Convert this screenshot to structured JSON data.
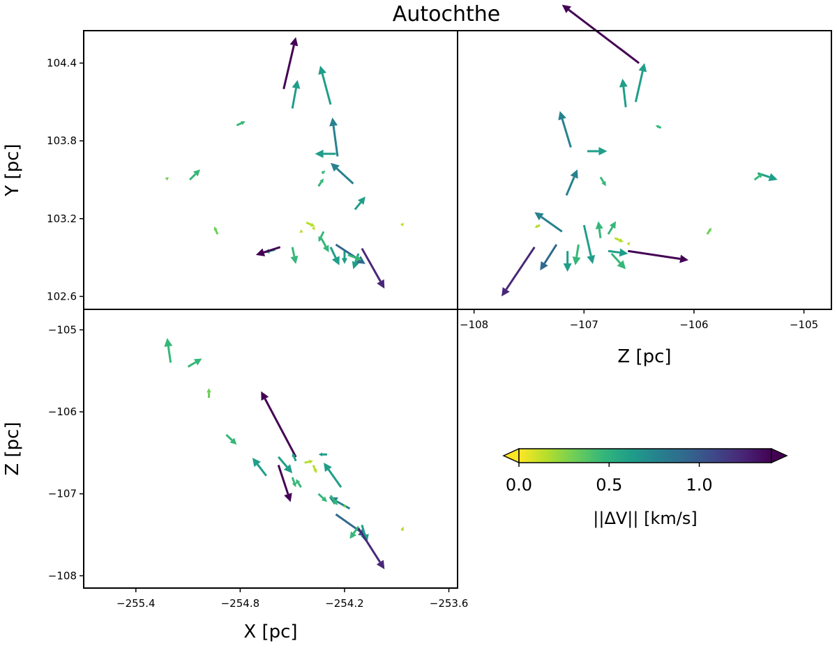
{
  "chart_data": {
    "type": "quiver",
    "title": "Autochthe",
    "panels": [
      {
        "id": "xy",
        "xlabel": "",
        "ylabel": "Y [pc]",
        "xlim": [
          -255.7,
          -253.55
        ],
        "ylim": [
          102.5,
          104.65
        ],
        "xticks": [],
        "yticks": [
          102.6,
          103.2,
          103.8,
          104.4
        ],
        "ytick_labels": [
          "102.6",
          "103.2",
          "103.8",
          "104.4"
        ],
        "arrows": [
          {
            "x": -254.55,
            "y": 104.2,
            "dx": 0.07,
            "dy": 0.4,
            "m": 1.38
          },
          {
            "x": -254.5,
            "y": 104.05,
            "dx": 0.03,
            "dy": 0.22,
            "m": 0.6
          },
          {
            "x": -254.28,
            "y": 104.08,
            "dx": -0.06,
            "dy": 0.3,
            "m": 0.65
          },
          {
            "x": -254.24,
            "y": 103.68,
            "dx": -0.03,
            "dy": 0.3,
            "m": 0.78
          },
          {
            "x": -254.25,
            "y": 103.7,
            "dx": -0.12,
            "dy": 0.0,
            "m": 0.6
          },
          {
            "x": -254.15,
            "y": 103.47,
            "dx": -0.13,
            "dy": 0.16,
            "m": 0.8
          },
          {
            "x": -254.14,
            "y": 103.27,
            "dx": 0.06,
            "dy": 0.1,
            "m": 0.6
          },
          {
            "x": -254.82,
            "y": 103.92,
            "dx": 0.05,
            "dy": 0.03,
            "m": 0.4
          },
          {
            "x": -255.09,
            "y": 103.5,
            "dx": 0.06,
            "dy": 0.08,
            "m": 0.4
          },
          {
            "x": -254.93,
            "y": 103.08,
            "dx": -0.02,
            "dy": 0.06,
            "m": 0.3
          },
          {
            "x": -255.22,
            "y": 103.51,
            "dx": 0.01,
            "dy": 0.01,
            "m": 0.35
          },
          {
            "x": -254.35,
            "y": 103.45,
            "dx": 0.03,
            "dy": 0.06,
            "m": 0.4
          },
          {
            "x": -254.33,
            "y": 103.55,
            "dx": 0.02,
            "dy": 0.02,
            "m": 0.4
          },
          {
            "x": -254.32,
            "y": 103.1,
            "dx": -0.03,
            "dy": -0.08,
            "m": 0.45
          },
          {
            "x": -254.42,
            "y": 103.17,
            "dx": 0.05,
            "dy": -0.03,
            "m": 0.2
          },
          {
            "x": -254.38,
            "y": 103.13,
            "dx": 0.01,
            "dy": -0.02,
            "m": 0.1
          },
          {
            "x": -254.33,
            "y": 103.04,
            "dx": 0.04,
            "dy": -0.1,
            "m": 0.5
          },
          {
            "x": -254.28,
            "y": 102.98,
            "dx": 0.05,
            "dy": -0.14,
            "m": 0.6
          },
          {
            "x": -254.2,
            "y": 102.95,
            "dx": 0.0,
            "dy": -0.1,
            "m": 0.55
          },
          {
            "x": -254.25,
            "y": 103.0,
            "dx": 0.17,
            "dy": -0.15,
            "m": 1.0
          },
          {
            "x": -254.12,
            "y": 102.93,
            "dx": -0.03,
            "dy": -0.12,
            "m": 0.6
          },
          {
            "x": -254.18,
            "y": 102.92,
            "dx": 0.08,
            "dy": -0.04,
            "m": 0.5
          },
          {
            "x": -254.1,
            "y": 102.97,
            "dx": 0.13,
            "dy": -0.31,
            "m": 1.3
          },
          {
            "x": -254.5,
            "y": 102.98,
            "dx": 0.02,
            "dy": -0.13,
            "m": 0.45
          },
          {
            "x": -254.6,
            "y": 102.96,
            "dx": -0.06,
            "dy": -0.02,
            "m": 0.6
          },
          {
            "x": -254.57,
            "y": 102.98,
            "dx": -0.14,
            "dy": -0.06,
            "m": 1.35
          },
          {
            "x": -253.87,
            "y": 103.15,
            "dx": 0.01,
            "dy": 0.02,
            "m": 0.2
          },
          {
            "x": -254.45,
            "y": 103.1,
            "dx": -0.01,
            "dy": -0.01,
            "m": 0.1
          }
        ]
      },
      {
        "id": "zy",
        "xlabel": "Z [pc]",
        "ylabel": "",
        "xlim": [
          -108.15,
          -104.75
        ],
        "ylim": [
          102.5,
          104.65
        ],
        "xticks": [
          -108,
          -107,
          -106,
          -105
        ],
        "xtick_labels": [
          "−108",
          "−107",
          "−106",
          "−105"
        ],
        "yticks": [],
        "arrows": [
          {
            "x": -106.5,
            "y": 104.4,
            "dx": -0.7,
            "dy": 0.45,
            "m": 1.38
          },
          {
            "x": -106.53,
            "y": 104.1,
            "dx": 0.08,
            "dy": 0.3,
            "m": 0.65
          },
          {
            "x": -106.62,
            "y": 104.06,
            "dx": -0.03,
            "dy": 0.22,
            "m": 0.6
          },
          {
            "x": -106.3,
            "y": 103.9,
            "dx": -0.05,
            "dy": 0.02,
            "m": 0.4
          },
          {
            "x": -107.12,
            "y": 103.75,
            "dx": -0.1,
            "dy": 0.28,
            "m": 0.78
          },
          {
            "x": -106.97,
            "y": 103.72,
            "dx": 0.18,
            "dy": 0.0,
            "m": 0.6
          },
          {
            "x": -107.16,
            "y": 103.38,
            "dx": 0.1,
            "dy": 0.2,
            "m": 0.8
          },
          {
            "x": -106.85,
            "y": 103.52,
            "dx": 0.05,
            "dy": -0.07,
            "m": 0.4
          },
          {
            "x": -105.42,
            "y": 103.55,
            "dx": 0.18,
            "dy": -0.05,
            "m": 0.55
          },
          {
            "x": -105.45,
            "y": 103.5,
            "dx": 0.08,
            "dy": 0.05,
            "m": 0.4
          },
          {
            "x": -107.2,
            "y": 103.1,
            "dx": -0.25,
            "dy": 0.15,
            "m": 0.8
          },
          {
            "x": -105.88,
            "y": 103.08,
            "dx": 0.04,
            "dy": 0.05,
            "m": 0.3
          },
          {
            "x": -106.78,
            "y": 103.08,
            "dx": 0.07,
            "dy": 0.1,
            "m": 0.5
          },
          {
            "x": -106.85,
            "y": 103.05,
            "dx": -0.02,
            "dy": 0.13,
            "m": 0.45
          },
          {
            "x": -106.72,
            "y": 103.05,
            "dx": 0.08,
            "dy": -0.03,
            "m": 0.2
          },
          {
            "x": -107.4,
            "y": 103.15,
            "dx": -0.05,
            "dy": -0.02,
            "m": 0.1
          },
          {
            "x": -106.6,
            "y": 103.0,
            "dx": 0.02,
            "dy": 0.02,
            "m": 0.1
          },
          {
            "x": -107.05,
            "y": 103.0,
            "dx": -0.03,
            "dy": -0.16,
            "m": 0.5
          },
          {
            "x": -107.0,
            "y": 103.15,
            "dx": 0.08,
            "dy": -0.3,
            "m": 0.55
          },
          {
            "x": -107.15,
            "y": 102.95,
            "dx": 0.0,
            "dy": -0.16,
            "m": 0.6
          },
          {
            "x": -107.25,
            "y": 103.0,
            "dx": -0.15,
            "dy": -0.2,
            "m": 1.0
          },
          {
            "x": -107.45,
            "y": 102.98,
            "dx": -0.3,
            "dy": -0.38,
            "m": 1.3
          },
          {
            "x": -106.78,
            "y": 102.95,
            "dx": 0.18,
            "dy": -0.02,
            "m": 0.6
          },
          {
            "x": -106.75,
            "y": 102.93,
            "dx": 0.13,
            "dy": -0.12,
            "m": 0.5
          },
          {
            "x": -106.6,
            "y": 102.95,
            "dx": 0.55,
            "dy": -0.07,
            "m": 1.35
          }
        ]
      },
      {
        "id": "xz",
        "xlabel": "X [pc]",
        "ylabel": "Z [pc]",
        "xlim": [
          -255.7,
          -253.55
        ],
        "ylim": [
          -108.15,
          -104.75
        ],
        "xticks": [
          -255.4,
          -254.8,
          -254.2,
          -253.6
        ],
        "xtick_labels": [
          "−255.4",
          "−254.8",
          "−254.2",
          "−253.6"
        ],
        "yticks": [
          -105,
          -106,
          -107,
          -108
        ],
        "ytick_labels": [
          "−105",
          "−106",
          "−107",
          "−108"
        ],
        "arrows": [
          {
            "x": -255.2,
            "y": -105.4,
            "dx": -0.02,
            "dy": 0.3,
            "m": 0.5
          },
          {
            "x": -255.1,
            "y": -105.45,
            "dx": 0.08,
            "dy": 0.1,
            "m": 0.4
          },
          {
            "x": -254.98,
            "y": -105.83,
            "dx": 0.0,
            "dy": 0.12,
            "m": 0.3
          },
          {
            "x": -254.88,
            "y": -106.28,
            "dx": 0.06,
            "dy": -0.12,
            "m": 0.4
          },
          {
            "x": -254.48,
            "y": -106.55,
            "dx": -0.2,
            "dy": 0.8,
            "m": 1.38
          },
          {
            "x": -254.48,
            "y": -106.6,
            "dx": -0.02,
            "dy": 0.1,
            "m": 0.6
          },
          {
            "x": -254.43,
            "y": -106.62,
            "dx": 0.05,
            "dy": 0.02,
            "m": 0.2
          },
          {
            "x": -254.38,
            "y": -106.65,
            "dx": 0.02,
            "dy": -0.1,
            "m": 0.2
          },
          {
            "x": -254.3,
            "y": -106.52,
            "dx": -0.05,
            "dy": 0.0,
            "m": 0.6
          },
          {
            "x": -254.22,
            "y": -106.92,
            "dx": -0.1,
            "dy": 0.3,
            "m": 0.65
          },
          {
            "x": -254.17,
            "y": -107.18,
            "dx": -0.12,
            "dy": 0.14,
            "m": 0.78
          },
          {
            "x": -254.5,
            "y": -106.8,
            "dx": 0.02,
            "dy": -0.12,
            "m": 0.45
          },
          {
            "x": -254.45,
            "y": -106.92,
            "dx": -0.03,
            "dy": 0.1,
            "m": 0.5
          },
          {
            "x": -254.58,
            "y": -106.55,
            "dx": 0.08,
            "dy": -0.2,
            "m": 0.6
          },
          {
            "x": -254.58,
            "y": -106.65,
            "dx": 0.07,
            "dy": -0.45,
            "m": 1.35
          },
          {
            "x": -254.65,
            "y": -106.78,
            "dx": -0.08,
            "dy": 0.22,
            "m": 0.6
          },
          {
            "x": -254.35,
            "y": -107.0,
            "dx": 0.05,
            "dy": -0.1,
            "m": 0.4
          },
          {
            "x": -254.28,
            "y": -107.02,
            "dx": 0.04,
            "dy": -0.12,
            "m": 0.5
          },
          {
            "x": -254.25,
            "y": -107.25,
            "dx": 0.18,
            "dy": -0.27,
            "m": 1.0
          },
          {
            "x": -254.1,
            "y": -107.38,
            "dx": 0.03,
            "dy": -0.22,
            "m": 0.6
          },
          {
            "x": -254.12,
            "y": -107.4,
            "dx": -0.05,
            "dy": -0.15,
            "m": 0.5
          },
          {
            "x": -254.12,
            "y": -107.42,
            "dx": 0.15,
            "dy": -0.5,
            "m": 1.3
          },
          {
            "x": -254.2,
            "y": -107.15,
            "dx": 0.01,
            "dy": -0.02,
            "m": 0.3
          },
          {
            "x": -253.87,
            "y": -107.45,
            "dx": 0.01,
            "dy": 0.05,
            "m": 0.2
          }
        ]
      }
    ],
    "colorbar": {
      "label": "||ΔV|| [km/s]",
      "vmin": 0.0,
      "vmax": 1.4,
      "ticks": [
        0.0,
        0.5,
        1.0
      ],
      "tick_labels": [
        "0.0",
        "0.5",
        "1.0"
      ],
      "extend": "both",
      "colormap": "viridis_r",
      "colors": [
        "#fde725",
        "#b5de2b",
        "#6ece58",
        "#35b779",
        "#1f9e89",
        "#26828e",
        "#31688e",
        "#3e4989",
        "#482878",
        "#440154"
      ]
    }
  }
}
